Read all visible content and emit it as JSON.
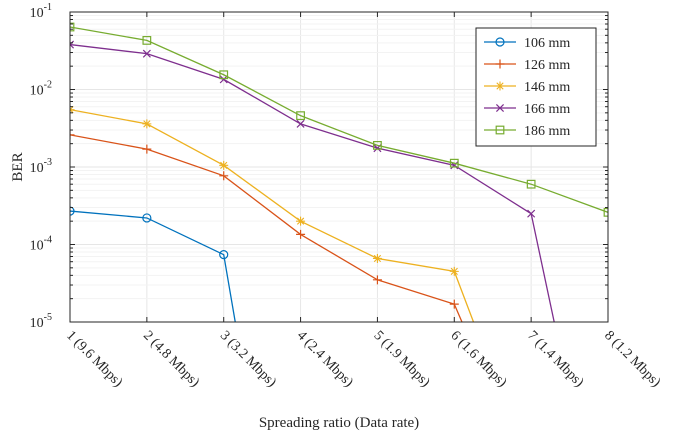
{
  "chart_data": {
    "type": "line",
    "xlabel": "Spreading ratio (Data rate)",
    "ylabel": "BER",
    "x_tick_labels": [
      "1 (9.6 Mbps)",
      "2 (4.8 Mbps)",
      "3 (3.2 Mbps)",
      "4 (2.4 Mbps)",
      "5 (1.9 Mbps)",
      "6 (1.6 Mbps)",
      "7 (1.4 Mbps)",
      "8 (1.2 Mbps)"
    ],
    "y_tick_labels": [
      {
        "base": "10",
        "exp": "-1",
        "value": 0.1
      },
      {
        "base": "10",
        "exp": "-2",
        "value": 0.01
      },
      {
        "base": "10",
        "exp": "-3",
        "value": 0.001
      },
      {
        "base": "10",
        "exp": "-4",
        "value": 0.0001
      },
      {
        "base": "10",
        "exp": "-5",
        "value": 1e-05
      }
    ],
    "xlim": [
      1,
      8
    ],
    "ylim": [
      1e-05,
      0.1
    ],
    "yscale": "log",
    "grid": true,
    "legend_position": "top-right",
    "series": [
      {
        "name": "106 mm",
        "color": "#0072BD",
        "marker": "circle",
        "x": [
          1,
          2,
          3,
          3.15
        ],
        "y": [
          0.00027,
          0.00022,
          7.4e-05,
          1e-05
        ]
      },
      {
        "name": "126 mm",
        "color": "#D95319",
        "marker": "plus",
        "x": [
          1,
          2,
          3,
          4,
          5,
          6,
          6.1
        ],
        "y": [
          0.0026,
          0.0017,
          0.00077,
          0.000135,
          3.5e-05,
          1.7e-05,
          1e-05
        ]
      },
      {
        "name": "146 mm",
        "color": "#EDB120",
        "marker": "asterisk",
        "x": [
          1,
          2,
          3,
          4,
          5,
          6,
          6.25
        ],
        "y": [
          0.0055,
          0.0036,
          0.00105,
          0.0002,
          6.6e-05,
          4.5e-05,
          1e-05
        ]
      },
      {
        "name": "166 mm",
        "color": "#7E2F8E",
        "marker": "x",
        "x": [
          1,
          2,
          3,
          4,
          5,
          6,
          7,
          7.3
        ],
        "y": [
          0.038,
          0.029,
          0.0135,
          0.0036,
          0.00175,
          0.00105,
          0.00025,
          1e-05
        ]
      },
      {
        "name": "186 mm",
        "color": "#77AC30",
        "marker": "square",
        "x": [
          1,
          2,
          3,
          4,
          5,
          6,
          7,
          8
        ],
        "y": [
          0.064,
          0.043,
          0.0155,
          0.0046,
          0.0019,
          0.00112,
          0.0006,
          0.00026
        ]
      }
    ]
  }
}
